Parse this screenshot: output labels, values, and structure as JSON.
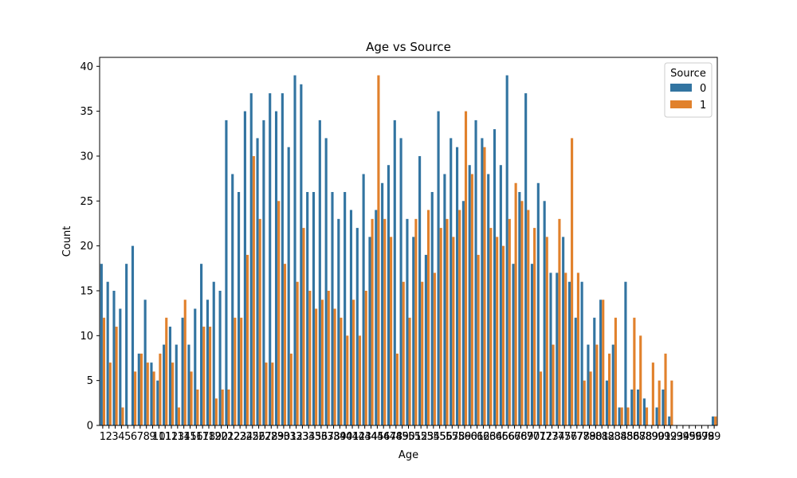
{
  "chart_data": {
    "type": "bar",
    "title": "Age vs Source",
    "xlabel": "Age",
    "ylabel": "Count",
    "ylim": [
      0,
      41
    ],
    "yticks": [
      0,
      5,
      10,
      15,
      20,
      25,
      30,
      35,
      40
    ],
    "grid": false,
    "legend": {
      "title": "Source",
      "placement": "top-right"
    },
    "categories": [
      "1",
      "2",
      "3",
      "4",
      "5",
      "6",
      "7",
      "8",
      "9",
      "10",
      "11",
      "12",
      "13",
      "14",
      "15",
      "16",
      "17",
      "18",
      "19",
      "20",
      "21",
      "22",
      "23",
      "24",
      "25",
      "26",
      "27",
      "28",
      "29",
      "30",
      "31",
      "32",
      "33",
      "34",
      "35",
      "36",
      "37",
      "38",
      "39",
      "40",
      "41",
      "42",
      "43",
      "44",
      "45",
      "46",
      "47",
      "48",
      "49",
      "50",
      "51",
      "52",
      "53",
      "54",
      "55",
      "56",
      "57",
      "58",
      "59",
      "60",
      "61",
      "62",
      "63",
      "64",
      "65",
      "66",
      "67",
      "68",
      "69",
      "70",
      "71",
      "72",
      "73",
      "74",
      "75",
      "76",
      "77",
      "78",
      "79",
      "80",
      "81",
      "82",
      "83",
      "84",
      "85",
      "86",
      "87",
      "88",
      "89",
      "90",
      "91",
      "92",
      "93",
      "94",
      "95",
      "96",
      "97",
      "98",
      "99"
    ],
    "series": [
      {
        "name": "0",
        "color": "#3274a1",
        "values": [
          18,
          16,
          15,
          13,
          18,
          20,
          8,
          14,
          7,
          5,
          9,
          11,
          9,
          12,
          9,
          13,
          18,
          14,
          16,
          15,
          34,
          28,
          26,
          35,
          37,
          32,
          34,
          37,
          35,
          37,
          31,
          39,
          38,
          26,
          26,
          34,
          32,
          26,
          23,
          26,
          24,
          22,
          28,
          21,
          24,
          27,
          29,
          34,
          32,
          23,
          21,
          30,
          19,
          26,
          35,
          28,
          32,
          31,
          25,
          29,
          34,
          32,
          28,
          33,
          29,
          39,
          18,
          26,
          37,
          18,
          27,
          25,
          17,
          17,
          21,
          16,
          12,
          16,
          9,
          12,
          14,
          5,
          9,
          2,
          16,
          4,
          4,
          3,
          0,
          2,
          4,
          1,
          0,
          0,
          0,
          0,
          0,
          0,
          1
        ]
      },
      {
        "name": "1",
        "color": "#e1812c",
        "values": [
          12,
          7,
          11,
          2,
          0,
          6,
          8,
          7,
          6,
          8,
          12,
          7,
          2,
          14,
          6,
          4,
          11,
          11,
          3,
          4,
          4,
          12,
          12,
          19,
          30,
          23,
          7,
          7,
          25,
          18,
          8,
          16,
          22,
          15,
          13,
          14,
          15,
          13,
          12,
          10,
          14,
          10,
          15,
          23,
          39,
          23,
          21,
          8,
          16,
          12,
          23,
          16,
          24,
          17,
          22,
          23,
          21,
          24,
          35,
          28,
          19,
          31,
          22,
          21,
          20,
          23,
          27,
          25,
          24,
          22,
          6,
          21,
          9,
          23,
          17,
          32,
          17,
          5,
          6,
          9,
          14,
          8,
          12,
          2,
          2,
          12,
          10,
          2,
          7,
          5,
          8,
          5,
          0,
          0,
          0,
          0,
          0,
          0,
          1
        ]
      }
    ]
  }
}
